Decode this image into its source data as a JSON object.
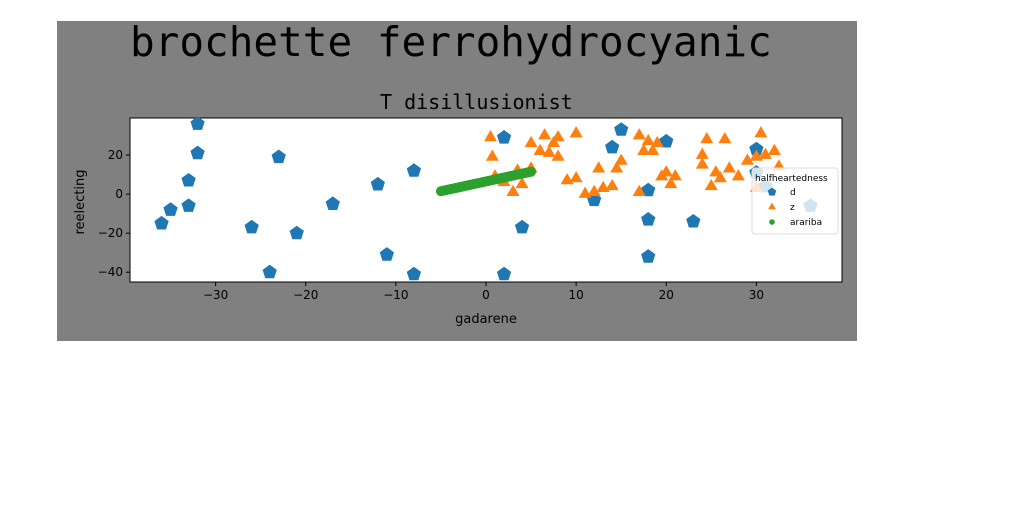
{
  "chart_data": {
    "type": "scatter",
    "suptitle": "brochette ferrohydrocyanic",
    "title": "T disillusionist",
    "xlabel": "gadarene",
    "ylabel": "reelecting",
    "xlim": [
      -39.5,
      39.5
    ],
    "ylim": [
      -45,
      39
    ],
    "xticks": [
      -30,
      -20,
      -10,
      0,
      10,
      20,
      30
    ],
    "yticks": [
      -40,
      -20,
      0,
      20
    ],
    "grid": false,
    "legend": {
      "title": "halfheartedness",
      "placement": "right"
    },
    "series": [
      {
        "name": "d",
        "marker": "pentagon",
        "color": "#1f77b4",
        "points": [
          [
            -36,
            -15
          ],
          [
            -35,
            -8
          ],
          [
            -33,
            -6
          ],
          [
            -33,
            7
          ],
          [
            -32,
            36
          ],
          [
            -32,
            21
          ],
          [
            -26,
            -17
          ],
          [
            -24,
            -40
          ],
          [
            -23,
            19
          ],
          [
            -21,
            -20
          ],
          [
            -17,
            -5
          ],
          [
            -12,
            5
          ],
          [
            -11,
            -31
          ],
          [
            -8,
            12
          ],
          [
            -8,
            -41
          ],
          [
            2,
            29
          ],
          [
            2,
            -41
          ],
          [
            4,
            -17
          ],
          [
            12,
            -3
          ],
          [
            14,
            24
          ],
          [
            15,
            33
          ],
          [
            18,
            2
          ],
          [
            18,
            -13
          ],
          [
            18,
            -32
          ],
          [
            20,
            27
          ],
          [
            23,
            -14
          ],
          [
            30,
            23
          ],
          [
            30,
            11
          ],
          [
            31,
            4
          ],
          [
            36,
            -6
          ]
        ]
      },
      {
        "name": "z",
        "marker": "triangle",
        "color": "#ff7f0e",
        "points": [
          [
            0.5,
            29
          ],
          [
            0.7,
            19
          ],
          [
            1,
            9
          ],
          [
            2,
            6
          ],
          [
            3,
            1
          ],
          [
            3.5,
            12
          ],
          [
            4,
            5
          ],
          [
            5,
            13
          ],
          [
            5,
            26
          ],
          [
            6,
            22
          ],
          [
            6.5,
            30
          ],
          [
            7,
            21
          ],
          [
            7.5,
            26
          ],
          [
            8,
            19
          ],
          [
            8,
            29
          ],
          [
            9,
            7
          ],
          [
            10,
            31
          ],
          [
            10,
            8
          ],
          [
            11,
            0
          ],
          [
            12,
            1
          ],
          [
            12.5,
            13
          ],
          [
            13,
            3
          ],
          [
            14,
            4
          ],
          [
            14.5,
            13
          ],
          [
            15,
            17
          ],
          [
            17,
            30
          ],
          [
            17,
            1
          ],
          [
            17.5,
            22
          ],
          [
            18,
            27
          ],
          [
            18.5,
            22
          ],
          [
            19,
            26
          ],
          [
            19.5,
            9
          ],
          [
            20,
            11
          ],
          [
            20.5,
            5
          ],
          [
            21,
            9
          ],
          [
            24,
            20
          ],
          [
            24,
            15
          ],
          [
            24.5,
            28
          ],
          [
            25,
            4
          ],
          [
            25.5,
            11
          ],
          [
            26,
            8
          ],
          [
            26.5,
            28
          ],
          [
            27,
            13
          ],
          [
            28,
            9
          ],
          [
            29,
            17
          ],
          [
            30,
            19
          ],
          [
            30.5,
            31
          ],
          [
            31,
            20
          ],
          [
            32,
            22
          ],
          [
            32.5,
            14
          ],
          [
            30,
            3
          ]
        ]
      },
      {
        "name": "arariba",
        "marker": "circle",
        "color": "#2ca02c",
        "line": {
          "x_start": -5,
          "x_end": 5,
          "y_start": 1.5,
          "y_end": 11.5,
          "count": 60
        }
      }
    ]
  }
}
